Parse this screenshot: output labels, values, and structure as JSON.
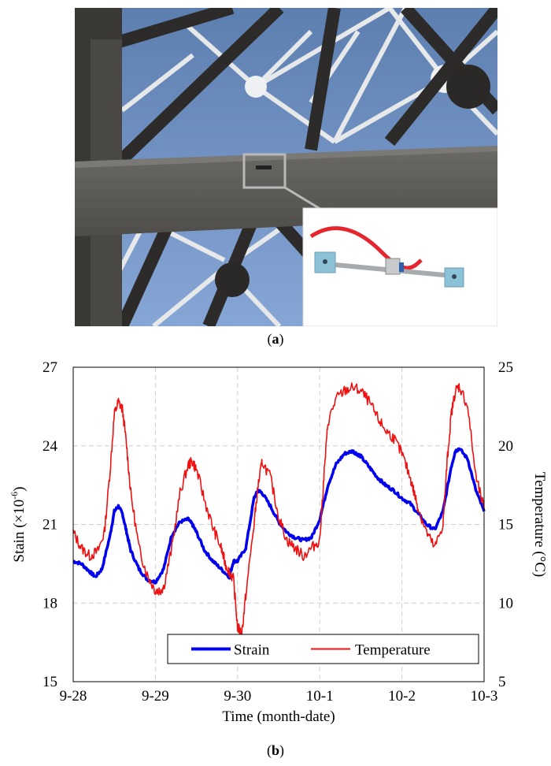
{
  "captions": {
    "a_letter": "a",
    "b_letter": "b"
  },
  "chart_data": {
    "type": "line",
    "xlabel": "Time (month-date)",
    "ylabel_left": "Stain (×10",
    "ylabel_left_exp": "-6",
    "ylabel_left_close": ")",
    "ylabel_right": "Temperature (°C)",
    "x_ticks": [
      "9-28",
      "9-29",
      "9-30",
      "10-1",
      "10-2",
      "10-3"
    ],
    "xlim": [
      0,
      5
    ],
    "ylim_left": [
      15,
      27
    ],
    "y_ticks_left": [
      15,
      18,
      21,
      24,
      27
    ],
    "ylim_right": [
      5,
      25
    ],
    "y_ticks_right": [
      5,
      10,
      15,
      20,
      25
    ],
    "grid": true,
    "legend_position": "bottom-right",
    "colors": {
      "strain": "#0000ee",
      "temperature": "#ee1111"
    },
    "series": [
      {
        "name": "Strain",
        "axis": "left",
        "x": [
          0,
          0.1,
          0.2,
          0.27,
          0.35,
          0.45,
          0.5,
          0.55,
          0.6,
          0.65,
          0.7,
          0.8,
          0.9,
          1.0,
          1.1,
          1.2,
          1.3,
          1.4,
          1.45,
          1.5,
          1.6,
          1.7,
          1.8,
          1.9,
          1.95,
          2.0,
          2.1,
          2.2,
          2.25,
          2.3,
          2.4,
          2.5,
          2.6,
          2.7,
          2.8,
          2.9,
          3.0,
          3.1,
          3.2,
          3.3,
          3.4,
          3.45,
          3.5,
          3.6,
          3.7,
          3.8,
          3.9,
          4.0,
          4.1,
          4.2,
          4.3,
          4.4,
          4.5,
          4.6,
          4.65,
          4.7,
          4.8,
          4.9,
          5.0
        ],
        "values": [
          19.6,
          19.5,
          19.2,
          19.0,
          19.3,
          20.6,
          21.5,
          21.7,
          21.4,
          20.7,
          20.0,
          19.3,
          18.9,
          18.8,
          19.3,
          20.6,
          21.1,
          21.2,
          21.0,
          20.7,
          20.0,
          19.6,
          19.3,
          19.0,
          19.6,
          19.6,
          20.1,
          22.0,
          22.3,
          22.2,
          21.7,
          21.1,
          20.7,
          20.5,
          20.4,
          20.5,
          21.2,
          22.5,
          23.3,
          23.7,
          23.8,
          23.7,
          23.6,
          23.2,
          22.8,
          22.5,
          22.3,
          22.0,
          21.8,
          21.4,
          21.0,
          20.8,
          21.5,
          23.2,
          23.8,
          23.9,
          23.5,
          22.3,
          21.5
        ]
      },
      {
        "name": "Temperature",
        "axis": "right",
        "x": [
          0,
          0.1,
          0.2,
          0.3,
          0.38,
          0.45,
          0.5,
          0.55,
          0.6,
          0.65,
          0.7,
          0.8,
          0.9,
          1.0,
          1.05,
          1.1,
          1.2,
          1.3,
          1.4,
          1.45,
          1.5,
          1.6,
          1.7,
          1.8,
          1.85,
          1.9,
          1.95,
          2.0,
          2.05,
          2.1,
          2.2,
          2.25,
          2.3,
          2.4,
          2.5,
          2.6,
          2.7,
          2.8,
          2.9,
          3.0,
          3.05,
          3.1,
          3.2,
          3.3,
          3.4,
          3.5,
          3.6,
          3.7,
          3.8,
          3.9,
          4.0,
          4.1,
          4.15,
          4.2,
          4.3,
          4.4,
          4.5,
          4.55,
          4.6,
          4.65,
          4.7,
          4.8,
          4.9,
          5.0
        ],
        "values": [
          14.5,
          13.5,
          13.0,
          13.3,
          14.5,
          18.5,
          22.0,
          22.8,
          22.3,
          20.0,
          17.0,
          13.5,
          11.8,
          10.8,
          10.8,
          11.0,
          13.5,
          17.0,
          18.8,
          19.0,
          18.5,
          16.5,
          14.8,
          13.5,
          12.5,
          12.0,
          11.5,
          8.5,
          8.0,
          10.5,
          15.0,
          17.5,
          19.0,
          18.0,
          15.5,
          14.0,
          13.5,
          13.0,
          13.5,
          14.0,
          18.0,
          21.5,
          23.0,
          23.5,
          23.7,
          23.5,
          22.8,
          21.8,
          21.0,
          20.5,
          19.5,
          18.0,
          17.0,
          16.0,
          14.5,
          13.5,
          15.0,
          19.0,
          22.0,
          23.5,
          23.8,
          22.5,
          18.0,
          16.0
        ]
      }
    ]
  }
}
